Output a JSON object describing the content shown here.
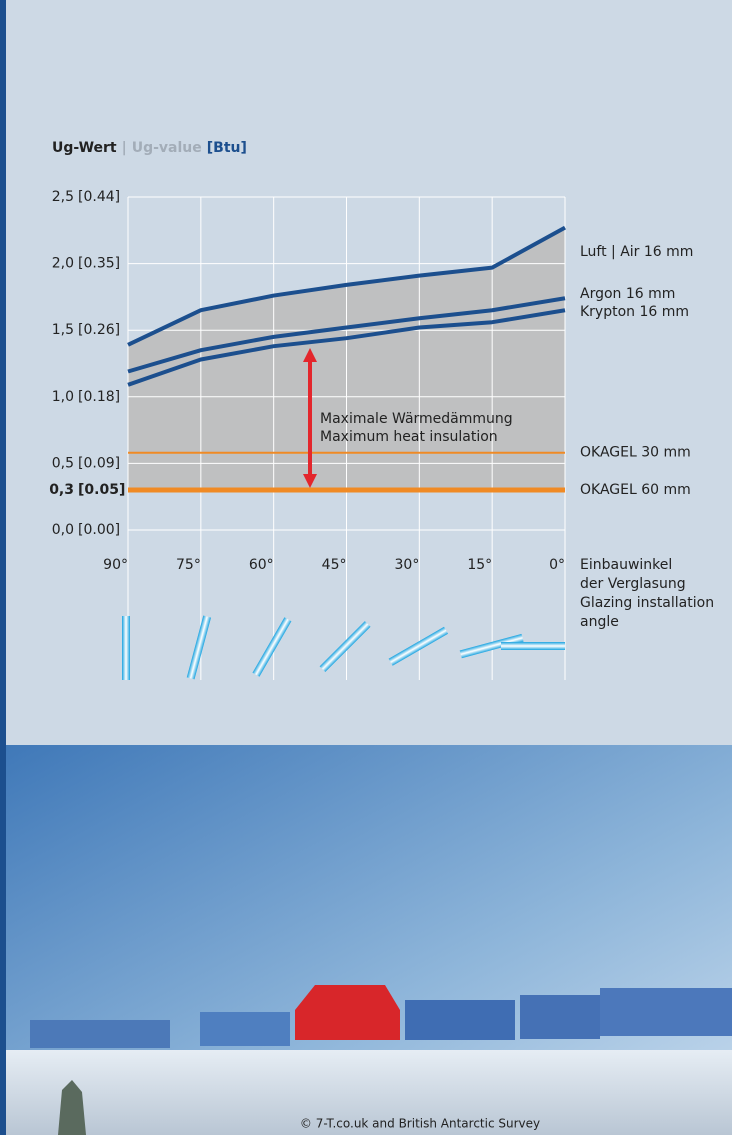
{
  "chart_data": {
    "type": "line",
    "title": {
      "de": "Ug-Wert",
      "sep": "|",
      "en": "Ug-value",
      "unit": "[Btu]"
    },
    "x": [
      90,
      75,
      60,
      45,
      30,
      15,
      0
    ],
    "xlim": [
      90,
      0
    ],
    "xticks": [
      {
        "value": 90,
        "label": "90°"
      },
      {
        "value": 75,
        "label": "75°"
      },
      {
        "value": 60,
        "label": "60°"
      },
      {
        "value": 45,
        "label": "45°"
      },
      {
        "value": 30,
        "label": "30°"
      },
      {
        "value": 15,
        "label": "15°"
      },
      {
        "value": 0,
        "label": "0°"
      }
    ],
    "x_label": {
      "de": [
        "Einbauwinkel",
        "der Verglasung"
      ],
      "en": [
        "Glazing installation",
        "angle"
      ]
    },
    "ylim": [
      0,
      2.5
    ],
    "yticks": [
      {
        "value": 0,
        "label": "0,0",
        "label_btu": "[0.00]"
      },
      {
        "value": 0.5,
        "label": "0,5",
        "label_btu": "[0.09]"
      },
      {
        "value": 1,
        "label": "1,0",
        "label_btu": "[0.18]"
      },
      {
        "value": 1.5,
        "label": "1,5",
        "label_btu": "[0.26]"
      },
      {
        "value": 2,
        "label": "2,0",
        "label_btu": "[0.35]"
      },
      {
        "value": 2.5,
        "label": "2,5",
        "label_btu": "[0.44]"
      }
    ],
    "highlight_tick": {
      "value": 0.3,
      "label": "0,3",
      "label_btu": "[0.05]"
    },
    "grid": true,
    "series": [
      {
        "name": "Luft | Air 16 mm",
        "color": "#1c4f8e",
        "values": [
          1.39,
          1.65,
          1.76,
          1.84,
          1.91,
          1.97,
          2.27
        ]
      },
      {
        "name": "Argon 16 mm",
        "color": "#1c4f8e",
        "values": [
          1.19,
          1.35,
          1.45,
          1.52,
          1.59,
          1.65,
          1.74
        ]
      },
      {
        "name": "Krypton 16 mm",
        "color": "#1c4f8e",
        "values": [
          1.09,
          1.28,
          1.38,
          1.44,
          1.52,
          1.56,
          1.65
        ]
      }
    ],
    "reference_lines": [
      {
        "name": "OKAGEL 30 mm",
        "value": 0.58,
        "color": "#f08a24"
      },
      {
        "name": "OKAGEL 60 mm",
        "value": 0.3,
        "color": "#f08a24"
      }
    ],
    "annotation": {
      "de": "Maximale Wärmedämmung",
      "en": "Maximum heat insulation",
      "color": "#e3262c"
    },
    "photo_credit": "© 7-T.co.uk and British Antarctic Survey"
  }
}
